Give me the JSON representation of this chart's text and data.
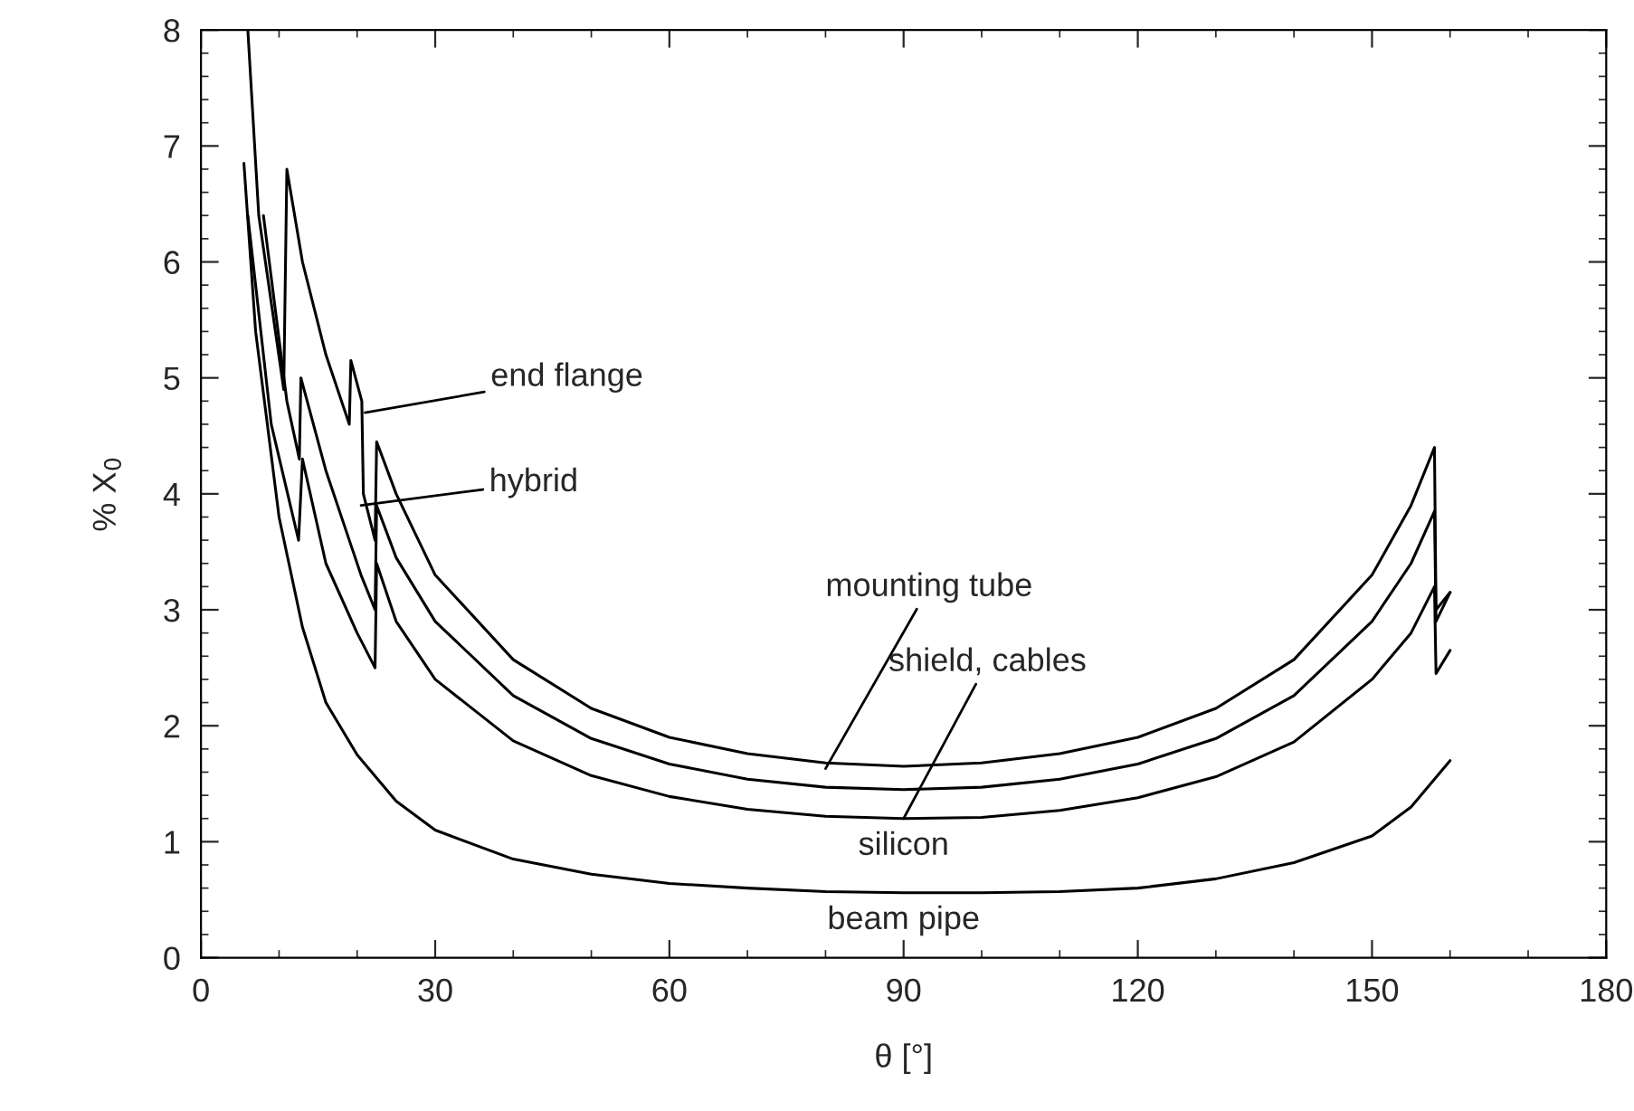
{
  "chart_data": {
    "type": "line",
    "xlabel": "θ [°]",
    "ylabel": "% X$_{0}$",
    "xlim": [
      0,
      180
    ],
    "ylim": [
      0,
      8
    ],
    "xticks": [
      0,
      30,
      60,
      90,
      120,
      150,
      180
    ],
    "yticks": [
      0,
      1,
      2,
      3,
      4,
      5,
      6,
      7,
      8
    ],
    "grid": false,
    "legend": false,
    "marker": "none",
    "line_style": "solid",
    "series": [
      {
        "color": "#000000",
        "x": [
          5.5,
          7,
          10,
          13,
          16,
          20,
          25,
          30,
          40,
          50,
          60,
          70,
          80,
          90,
          100,
          110,
          120,
          130,
          140,
          150,
          155,
          160
        ],
        "values": [
          6.85,
          5.4,
          3.8,
          2.85,
          2.2,
          1.75,
          1.35,
          1.1,
          0.85,
          0.72,
          0.64,
          0.6,
          0.57,
          0.56,
          0.56,
          0.57,
          0.6,
          0.68,
          0.82,
          1.05,
          1.3,
          1.7
        ]
      },
      {
        "color": "#000000",
        "x": [
          6,
          9,
          12.5,
          13,
          16,
          20,
          22.3,
          22.5,
          25,
          30,
          40,
          50,
          60,
          70,
          80,
          90,
          100,
          110,
          120,
          130,
          140,
          150,
          155,
          158,
          158.2,
          160
        ],
        "values": [
          6.4,
          4.6,
          3.6,
          4.3,
          3.4,
          2.8,
          2.5,
          3.4,
          2.9,
          2.4,
          1.87,
          1.57,
          1.39,
          1.28,
          1.22,
          1.2,
          1.21,
          1.27,
          1.38,
          1.56,
          1.86,
          2.4,
          2.8,
          3.2,
          2.45,
          2.65
        ]
      },
      {
        "color": "#000000",
        "x": [
          8,
          11,
          12.6,
          12.8,
          16,
          19,
          20.5,
          22.3,
          22.5,
          25,
          30,
          40,
          50,
          60,
          70,
          80,
          90,
          100,
          110,
          120,
          130,
          140,
          150,
          155,
          158,
          158.2,
          160
        ],
        "values": [
          6.4,
          4.8,
          4.3,
          5.0,
          4.2,
          3.6,
          3.3,
          3.0,
          3.9,
          3.45,
          2.9,
          2.26,
          1.89,
          1.67,
          1.54,
          1.47,
          1.45,
          1.47,
          1.54,
          1.67,
          1.89,
          2.26,
          2.9,
          3.4,
          3.85,
          2.9,
          3.15
        ]
      },
      {
        "color": "#000000",
        "x": [
          6,
          7.4,
          10.6,
          11,
          13,
          16,
          19,
          19.2,
          20.6,
          20.8,
          22.3,
          22.5,
          25,
          30,
          40,
          50,
          60,
          70,
          80,
          90,
          100,
          110,
          120,
          130,
          140,
          150,
          155,
          158,
          158.2,
          160
        ],
        "values": [
          8.0,
          6.4,
          4.9,
          6.8,
          6.0,
          5.2,
          4.6,
          5.15,
          4.8,
          4.0,
          3.6,
          4.45,
          4.0,
          3.3,
          2.57,
          2.15,
          1.9,
          1.76,
          1.68,
          1.65,
          1.68,
          1.76,
          1.9,
          2.15,
          2.57,
          3.3,
          3.9,
          4.4,
          3.0,
          3.15
        ]
      }
    ],
    "annotations": [
      {
        "text": "end flange",
        "x": 21,
        "y": 4.7
      },
      {
        "text": "hybrid",
        "x": 20.5,
        "y": 3.9
      },
      {
        "text": "mounting tube",
        "x": 80,
        "y": 1.63
      },
      {
        "text": "shield, cables",
        "x": 90,
        "y": 1.2
      },
      "silicon",
      "beam pipe"
    ]
  }
}
